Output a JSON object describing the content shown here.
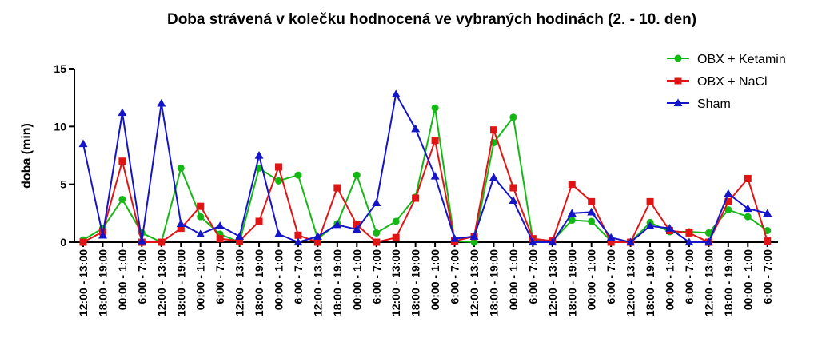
{
  "chart_data": {
    "type": "line",
    "title": "Doba strávená v kolečku hodnocená ve vybraných hodinách (2. - 10. den)",
    "xlabel": "",
    "ylabel": "doba (min)",
    "ylim": [
      0,
      15
    ],
    "yticks": [
      "0",
      "5",
      "10",
      "15"
    ],
    "grid": false,
    "legend_position": "top-right",
    "categories": [
      "12:00 - 13:00",
      "18:00 - 19:00",
      "00:00 - 1:00",
      "6:00 - 7:00",
      "12:00 - 13:00",
      "18:00 - 19:00",
      "00:00 - 1:00",
      "6:00 - 7:00",
      "12:00 - 13:00",
      "18:00 - 19:00",
      "00:00 - 1:00",
      "6:00 - 7:00",
      "12:00 - 13:00",
      "18:00 - 19:00",
      "00:00 - 1:00",
      "6:00 - 7:00",
      "12:00 - 13:00",
      "18:00 - 19:00",
      "00:00 - 1:00",
      "6:00 - 7:00",
      "12:00 - 13:00",
      "18:00 - 19:00",
      "00:00 - 1:00",
      "6:00 - 7:00",
      "12:00 - 13:00",
      "18:00 - 19:00",
      "00:00 - 1:00",
      "6:00 - 7:00",
      "12:00 - 13:00",
      "18:00 - 19:00",
      "00:00 - 1:00",
      "6:00 - 7:00",
      "12:00 - 13:00",
      "18:00 - 19:00",
      "00:00 - 1:00",
      "6:00 - 7:00"
    ],
    "series": [
      {
        "name": "OBX + Ketamin",
        "color": "#14b814",
        "marker": "circle",
        "values": [
          0.2,
          1.2,
          3.7,
          0.8,
          0,
          6.4,
          2.2,
          0.7,
          0,
          6.4,
          5.3,
          5.8,
          0.3,
          1.6,
          5.8,
          0.8,
          1.8,
          3.9,
          11.6,
          0.1,
          0,
          8.6,
          10.8,
          0.2,
          0.1,
          1.9,
          1.8,
          0.1,
          0,
          1.7,
          0.9,
          0.9,
          0.8,
          2.8,
          2.2,
          1.0
        ]
      },
      {
        "name": "OBX + NaCl",
        "color": "#e01414",
        "marker": "square",
        "values": [
          0,
          0.9,
          7.0,
          0,
          0,
          1.2,
          3.1,
          0.3,
          0.1,
          1.8,
          6.5,
          0.6,
          0,
          4.7,
          1.5,
          0,
          0.4,
          3.8,
          8.8,
          0.1,
          0.5,
          9.7,
          4.7,
          0.3,
          0.1,
          5.0,
          3.5,
          0,
          0,
          3.5,
          1.0,
          0.8,
          0,
          3.5,
          5.5,
          0.1
        ]
      },
      {
        "name": "Sham",
        "color": "#1414c8",
        "marker": "triangle",
        "values": [
          8.5,
          0.6,
          11.2,
          0.1,
          12.0,
          1.6,
          0.7,
          1.4,
          0.5,
          7.5,
          0.7,
          0,
          0.5,
          1.5,
          1.1,
          3.4,
          12.8,
          9.8,
          5.7,
          0.3,
          0.5,
          5.6,
          3.6,
          0,
          0,
          2.5,
          2.6,
          0.4,
          0,
          1.4,
          1.2,
          0,
          0,
          4.2,
          2.9,
          2.5
        ]
      }
    ]
  }
}
